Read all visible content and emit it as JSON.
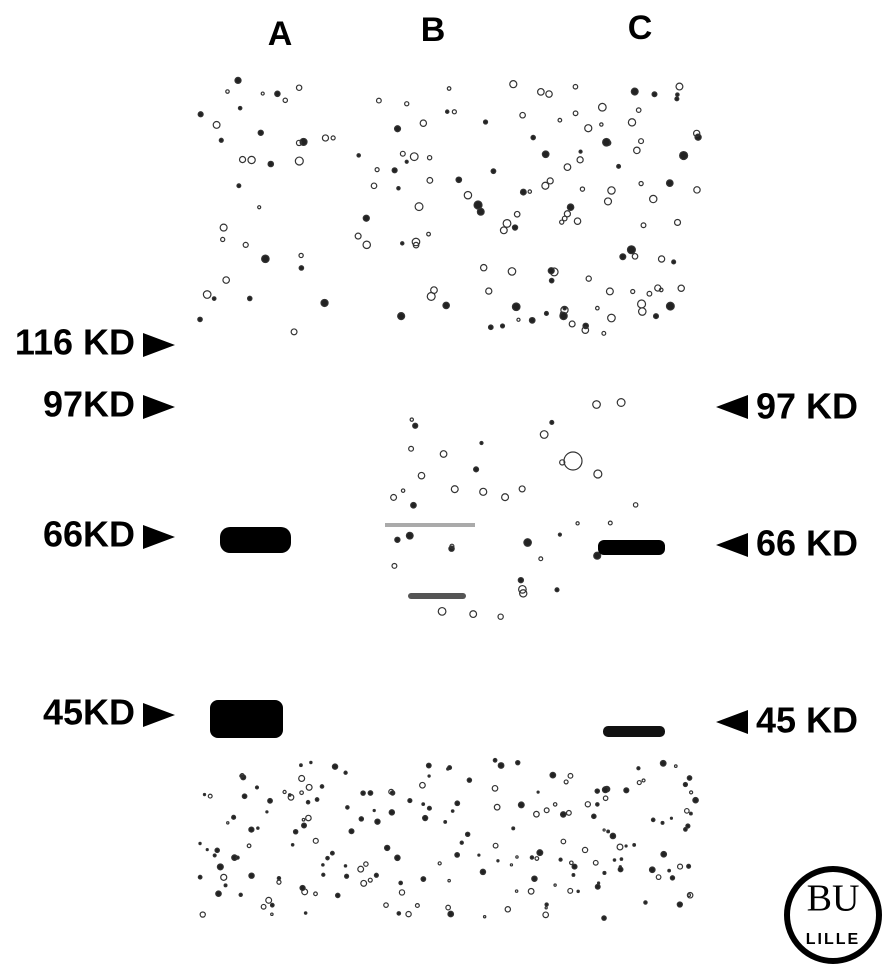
{
  "lanes": [
    "A",
    "B",
    "C"
  ],
  "markers_left": [
    "116 KD",
    "97KD",
    "66KD",
    "45KD"
  ],
  "markers_right": [
    "97 KD",
    "66 KD",
    "45 KD"
  ],
  "stamp": {
    "top": "BU",
    "bottom": "LILLE"
  }
}
